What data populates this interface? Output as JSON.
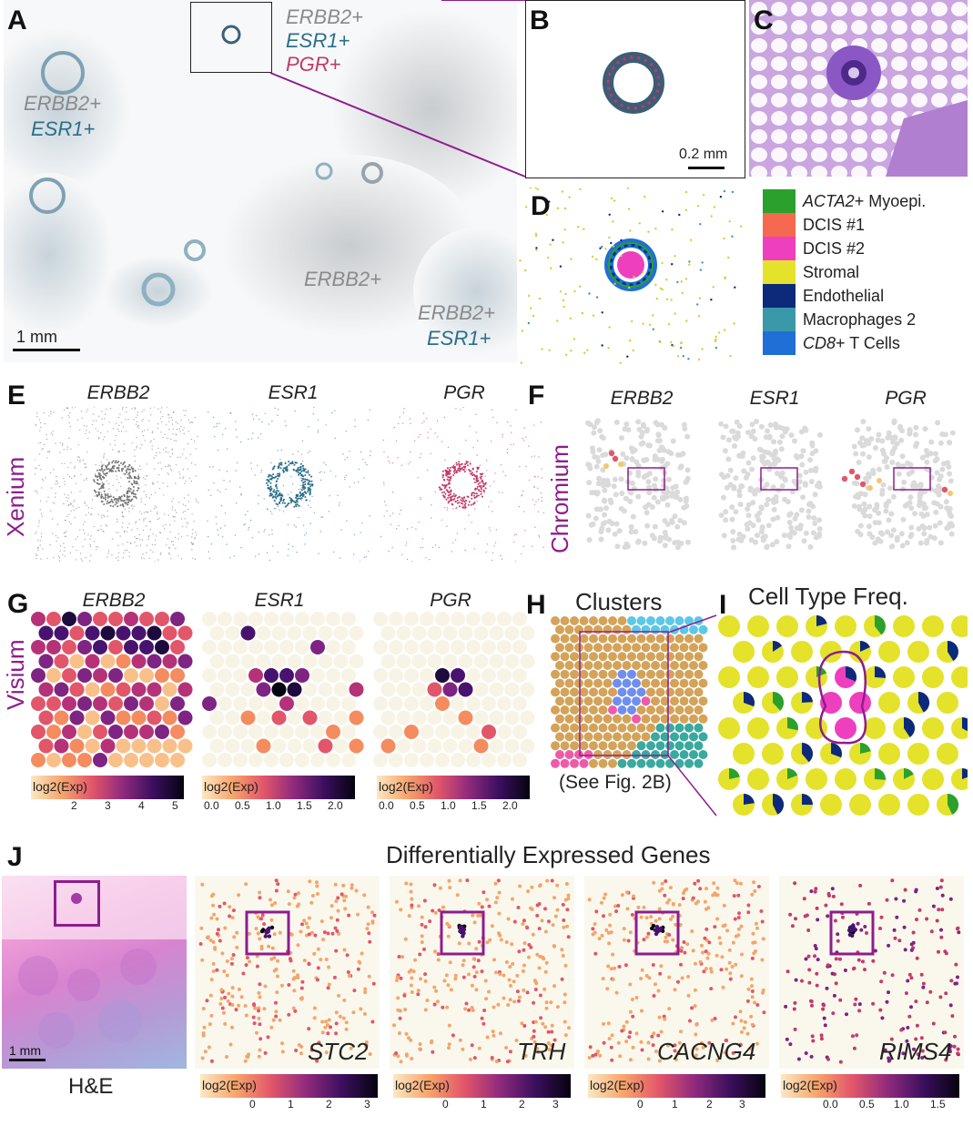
{
  "panels": {
    "A": {
      "letter": "A",
      "callout_line1": "ERBB2+",
      "callout_line2": "ESR1+",
      "callout_line3": "PGR+",
      "left_line1": "ERBB2+",
      "left_line2": "ESR1+",
      "mid_label": "ERBB2+",
      "br_line1": "ERBB2+",
      "br_line2": "ESR1+",
      "scale": "1 mm"
    },
    "B": {
      "letter": "B",
      "scale": "0.2 mm"
    },
    "C": {
      "letter": "C"
    },
    "D": {
      "letter": "D"
    },
    "E": {
      "letter": "E",
      "row_label": "Xenium",
      "genes": [
        "ERBB2",
        "ESR1",
        "PGR"
      ]
    },
    "F": {
      "letter": "F",
      "row_label": "Chromium",
      "genes": [
        "ERBB2",
        "ESR1",
        "PGR"
      ]
    },
    "G": {
      "letter": "G",
      "row_label": "Visium",
      "genes": [
        "ERBB2",
        "ESR1",
        "PGR"
      ],
      "colorbars": [
        {
          "label": "log2(Exp)",
          "ticks": [
            "2",
            "3",
            "4",
            "5"
          ]
        },
        {
          "label": "log2(Exp)",
          "ticks": [
            "0.0",
            "0.5",
            "1.0",
            "1.5",
            "2.0"
          ]
        },
        {
          "label": "log2(Exp)",
          "ticks": [
            "0.0",
            "0.5",
            "1.0",
            "1.5",
            "2.0"
          ]
        }
      ]
    },
    "H": {
      "letter": "H",
      "title": "Clusters",
      "caption": "(See Fig. 2B)"
    },
    "I": {
      "letter": "I",
      "title": "Cell Type Freq."
    },
    "J": {
      "letter": "J",
      "title": "Differentially Expressed Genes",
      "he_label": "H&E",
      "scale": "1 mm",
      "genes": [
        "STC2",
        "TRH",
        "CACNG4",
        "RIMS4"
      ],
      "colorbars": [
        {
          "label": "log2(Exp)",
          "ticks": [
            "0",
            "1",
            "2",
            "3"
          ]
        },
        {
          "label": "log2(Exp)",
          "ticks": [
            "0",
            "1",
            "2",
            "3"
          ]
        },
        {
          "label": "log2(Exp)",
          "ticks": [
            "0",
            "1",
            "2",
            "3"
          ]
        },
        {
          "label": "log2(Exp)",
          "ticks": [
            "0.0",
            "0.5",
            "1.0",
            "1.5"
          ]
        }
      ]
    }
  },
  "legend": [
    {
      "prefix": "ACTA2",
      "suffix": "+ Myoepi.",
      "color": "#2ca02c"
    },
    {
      "prefix": "",
      "suffix": "DCIS #1",
      "color": "#f4694f"
    },
    {
      "prefix": "",
      "suffix": "DCIS #2",
      "color": "#ee3fbf"
    },
    {
      "prefix": "",
      "suffix": "Stromal",
      "color": "#e4e22a"
    },
    {
      "prefix": "",
      "suffix": "Endothelial",
      "color": "#0d2a7a"
    },
    {
      "prefix": "",
      "suffix": "Macrophages 2",
      "color": "#3a99a8"
    },
    {
      "prefix": "CD8",
      "suffix": "+ T Cells",
      "color": "#1f6fd6"
    }
  ],
  "colors": {
    "purple": "#8e1d8e",
    "esr1": "#2a6f8a",
    "pgr": "#c23a67",
    "erbb2": "#8a8a8a"
  }
}
